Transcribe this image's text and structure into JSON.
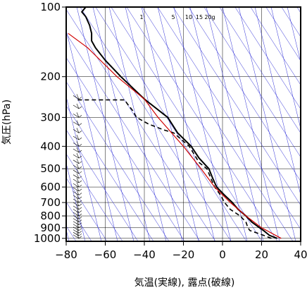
{
  "chart_data": {
    "type": "line",
    "title": "",
    "xlabel": "気温(実線), 露点(破線)",
    "ylabel": "気圧(hPa)",
    "xlim": [
      -80,
      40
    ],
    "ylim": [
      1030,
      100
    ],
    "yscale": "log",
    "grid": true,
    "x_ticks": [
      -80,
      -60,
      -40,
      -20,
      0,
      20,
      40
    ],
    "x_tick_labels": [
      "−80",
      "−60",
      "−40",
      "−20",
      "0",
      "20",
      "40"
    ],
    "y_ticks": [
      100,
      200,
      300,
      400,
      500,
      600,
      700,
      800,
      900,
      1000
    ],
    "y_tick_labels": [
      "100",
      "200",
      "300",
      "400",
      "500",
      "600",
      "700",
      "800",
      "900",
      "1000"
    ],
    "mixing_ratio_labels": [
      "1",
      "5",
      "10",
      "15",
      "20g"
    ],
    "colors": {
      "temperature": "#000000",
      "dewpoint": "#000000",
      "reference": "#d00000",
      "grid": "#000000",
      "isotherm": "#2b2bd6"
    },
    "series": [
      {
        "style": "solid",
        "points": [
          {
            "p": 1000,
            "t": 28
          },
          {
            "p": 970,
            "t": 24
          },
          {
            "p": 925,
            "t": 21
          },
          {
            "p": 900,
            "t": 19
          },
          {
            "p": 850,
            "t": 15
          },
          {
            "p": 800,
            "t": 12
          },
          {
            "p": 750,
            "t": 8
          },
          {
            "p": 700,
            "t": 5
          },
          {
            "p": 650,
            "t": 1
          },
          {
            "p": 600,
            "t": -3
          },
          {
            "p": 550,
            "t": -5
          },
          {
            "p": 500,
            "t": -7
          },
          {
            "p": 450,
            "t": -12
          },
          {
            "p": 400,
            "t": -16
          },
          {
            "p": 350,
            "t": -23
          },
          {
            "p": 300,
            "t": -28
          },
          {
            "p": 250,
            "t": -40
          },
          {
            "p": 200,
            "t": -52
          },
          {
            "p": 170,
            "t": -60
          },
          {
            "p": 150,
            "t": -65
          },
          {
            "p": 140,
            "t": -67
          },
          {
            "p": 130,
            "t": -67
          },
          {
            "p": 120,
            "t": -68
          },
          {
            "p": 110,
            "t": -70
          },
          {
            "p": 105,
            "t": -72
          },
          {
            "p": 100,
            "t": -70
          }
        ]
      },
      {
        "style": "dashed",
        "points": [
          {
            "p": 1000,
            "t": 25
          },
          {
            "p": 970,
            "t": 21
          },
          {
            "p": 950,
            "t": 18
          },
          {
            "p": 925,
            "t": 14
          },
          {
            "p": 900,
            "t": 13
          },
          {
            "p": 850,
            "t": 12
          },
          {
            "p": 800,
            "t": 9
          },
          {
            "p": 750,
            "t": 4
          },
          {
            "p": 700,
            "t": 1
          },
          {
            "p": 650,
            "t": -1
          },
          {
            "p": 600,
            "t": -4
          },
          {
            "p": 550,
            "t": -6
          },
          {
            "p": 500,
            "t": -8
          },
          {
            "p": 470,
            "t": -12
          },
          {
            "p": 440,
            "t": -14
          },
          {
            "p": 400,
            "t": -17
          },
          {
            "p": 350,
            "t": -25
          },
          {
            "p": 340,
            "t": -30
          },
          {
            "p": 320,
            "t": -38
          },
          {
            "p": 300,
            "t": -44
          },
          {
            "p": 280,
            "t": -46
          },
          {
            "p": 260,
            "t": -49
          },
          {
            "p": 252,
            "t": -50
          },
          {
            "p": 252,
            "t": -75
          }
        ]
      },
      {
        "style": "reference",
        "points": [
          {
            "p": 1000,
            "t": 30
          },
          {
            "p": 900,
            "t": 20
          },
          {
            "p": 800,
            "t": 12
          },
          {
            "p": 700,
            "t": 4
          },
          {
            "p": 600,
            "t": -4
          },
          {
            "p": 500,
            "t": -11
          },
          {
            "p": 400,
            "t": -20
          },
          {
            "p": 300,
            "t": -33
          },
          {
            "p": 250,
            "t": -40
          },
          {
            "p": 200,
            "t": -54
          },
          {
            "p": 150,
            "t": -69
          },
          {
            "p": 130,
            "t": -79
          }
        ]
      }
    ],
    "wind_barbs_pressures": [
      1000,
      975,
      950,
      925,
      900,
      875,
      850,
      825,
      800,
      775,
      750,
      725,
      700,
      675,
      650,
      625,
      600,
      575,
      550,
      525,
      500,
      475,
      450,
      425,
      400,
      375,
      350,
      325,
      300,
      275,
      250
    ]
  }
}
